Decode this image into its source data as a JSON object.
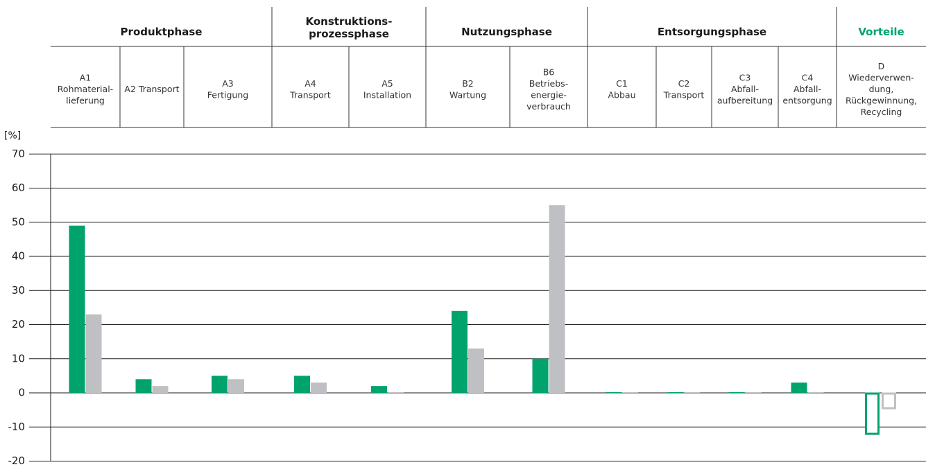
{
  "chart_data": {
    "type": "bar",
    "ylabel": "[%]",
    "ylim": [
      -20,
      70
    ],
    "yticks": [
      70,
      60,
      50,
      40,
      30,
      20,
      10,
      0,
      -10,
      -20
    ],
    "grid": true,
    "phases": [
      {
        "label": "Produktphase",
        "color": "#1a1a1a"
      },
      {
        "label": "Konstruktions-\nprozessphase",
        "color": "#1a1a1a"
      },
      {
        "label": "Nutzungsphase",
        "color": "#1a1a1a"
      },
      {
        "label": "Entsorgungsphase",
        "color": "#1a1a1a"
      },
      {
        "label": "Vorteile",
        "color": "#00a36c"
      }
    ],
    "categories": [
      "A1\nRohmaterial-\nlieferung",
      "A2 Transport",
      "A3\nFertigung",
      "A4\nTransport",
      "A5\nInstallation",
      "B2\nWartung",
      "B6\nBetriebs-\nenergie-\nverbrauch",
      "C1\nAbbau",
      "C2\nTransport",
      "C3\nAbfall-\naufbereitung",
      "C4\nAbfall-\nentsorgung",
      "D\nWiederverwen-\ndung,\nRückgewinnung,\nRecycling"
    ],
    "series": [
      {
        "values": [
          49,
          4,
          5,
          5,
          2,
          24,
          10,
          0.2,
          0.2,
          0.2,
          3,
          -12
        ],
        "color": "#00a36c"
      },
      {
        "values": [
          23,
          2,
          4,
          3,
          0.2,
          13,
          55,
          0.2,
          0.2,
          0.2,
          0.2,
          -4.5
        ],
        "color": "#bfc0c4"
      }
    ]
  }
}
